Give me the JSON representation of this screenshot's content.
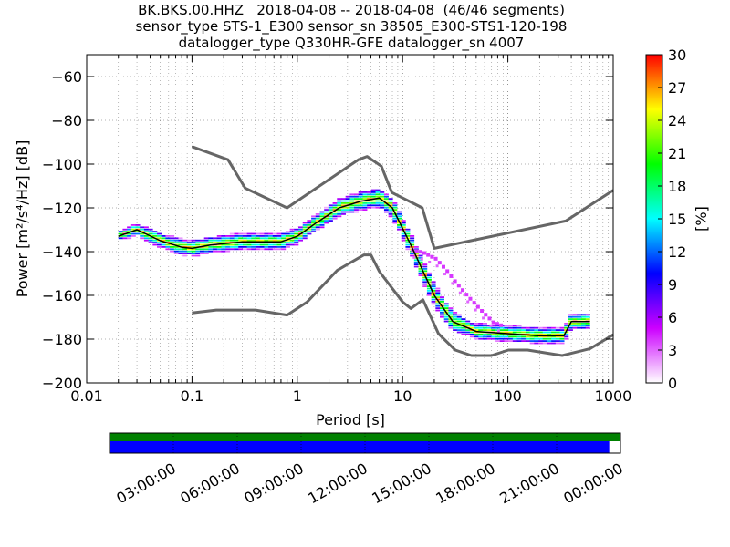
{
  "chart_data": {
    "type": "heatmap",
    "title_lines": [
      "BK.BKS.00.HHZ   2018-04-08 -- 2018-04-08  (46/46 segments)",
      "sensor_type STS-1_E300 sensor_sn 38505_E300-STS1-120-198",
      "datalogger_type Q330HR-GFE datalogger_sn 4007"
    ],
    "xlabel": "Period [s]",
    "ylabel": "Power [m²/s⁴/Hz] [dB]",
    "xscale": "log",
    "xlim": [
      0.01,
      1000
    ],
    "ylim": [
      -200,
      -50
    ],
    "xticks": [
      {
        "v": 0.01,
        "label": "0.01"
      },
      {
        "v": 0.1,
        "label": "0.1"
      },
      {
        "v": 1,
        "label": "1"
      },
      {
        "v": 10,
        "label": "10"
      },
      {
        "v": 100,
        "label": "100"
      },
      {
        "v": 1000,
        "label": "1000"
      }
    ],
    "yticks": [
      {
        "v": -60,
        "label": "−60"
      },
      {
        "v": -80,
        "label": "−80"
      },
      {
        "v": -100,
        "label": "−100"
      },
      {
        "v": -120,
        "label": "−120"
      },
      {
        "v": -140,
        "label": "−140"
      },
      {
        "v": -160,
        "label": "−160"
      },
      {
        "v": -180,
        "label": "−180"
      },
      {
        "v": -200,
        "label": "−200"
      }
    ],
    "grid": true,
    "colorbar": {
      "label": "[%]",
      "range": [
        0,
        30
      ],
      "ticks": [
        {
          "v": 0,
          "label": "0"
        },
        {
          "v": 3,
          "label": "3"
        },
        {
          "v": 6,
          "label": "6"
        },
        {
          "v": 9,
          "label": "9"
        },
        {
          "v": 12,
          "label": "12"
        },
        {
          "v": 15,
          "label": "15"
        },
        {
          "v": 18,
          "label": "18"
        },
        {
          "v": 21,
          "label": "21"
        },
        {
          "v": 24,
          "label": "24"
        },
        {
          "v": 27,
          "label": "27"
        },
        {
          "v": 30,
          "label": "30"
        }
      ],
      "colors": [
        "#ffffff",
        "#cc00ff",
        "#0000ff",
        "#00ffff",
        "#00ff00",
        "#ffff00",
        "#ff0000"
      ]
    },
    "nhnm": [
      [
        0.1,
        -92
      ],
      [
        0.22,
        -98
      ],
      [
        0.32,
        -111
      ],
      [
        0.8,
        -120
      ],
      [
        3.8,
        -98
      ],
      [
        4.6,
        -96.5
      ],
      [
        6.3,
        -101
      ],
      [
        7.9,
        -113
      ],
      [
        15.4,
        -120
      ],
      [
        20,
        -138.5
      ],
      [
        354,
        -126
      ],
      [
        1000,
        -112
      ]
    ],
    "nlnm": [
      [
        0.1,
        -168
      ],
      [
        0.17,
        -166.7
      ],
      [
        0.4,
        -166.7
      ],
      [
        0.8,
        -169
      ],
      [
        1.24,
        -163
      ],
      [
        2.4,
        -148.5
      ],
      [
        4.3,
        -141.5
      ],
      [
        5,
        -141.5
      ],
      [
        6,
        -149
      ],
      [
        10,
        -163
      ],
      [
        12,
        -166
      ],
      [
        15.6,
        -162
      ],
      [
        21.9,
        -177.5
      ],
      [
        31.6,
        -185
      ],
      [
        45,
        -187.5
      ],
      [
        70,
        -187.5
      ],
      [
        101,
        -185
      ],
      [
        154,
        -185
      ],
      [
        328,
        -187.5
      ],
      [
        600,
        -184.4
      ],
      [
        1000,
        -178
      ]
    ],
    "median": [
      [
        0.02,
        -133
      ],
      [
        0.03,
        -130
      ],
      [
        0.05,
        -135
      ],
      [
        0.08,
        -138
      ],
      [
        0.1,
        -138.5
      ],
      [
        0.15,
        -137
      ],
      [
        0.3,
        -135.5
      ],
      [
        0.7,
        -135.5
      ],
      [
        1,
        -133
      ],
      [
        1.5,
        -127
      ],
      [
        2.5,
        -120
      ],
      [
        4,
        -117
      ],
      [
        6,
        -115.5
      ],
      [
        8,
        -120
      ],
      [
        12,
        -137
      ],
      [
        20,
        -160
      ],
      [
        30,
        -172
      ],
      [
        50,
        -176.5
      ],
      [
        100,
        -177.5
      ],
      [
        200,
        -178.5
      ],
      [
        340,
        -178.5
      ],
      [
        400,
        -172
      ],
      [
        600,
        -172
      ]
    ],
    "band_spread": [
      [
        0.02,
        1.5
      ],
      [
        0.04,
        2.5
      ],
      [
        0.1,
        3
      ],
      [
        0.3,
        3
      ],
      [
        0.7,
        3
      ],
      [
        1.5,
        3
      ],
      [
        3,
        3.5
      ],
      [
        6,
        3.5
      ],
      [
        10,
        4
      ],
      [
        20,
        4.5
      ],
      [
        40,
        3
      ],
      [
        100,
        3
      ],
      [
        300,
        3
      ],
      [
        600,
        3
      ]
    ],
    "high_tail": [
      [
        12,
        -139
      ],
      [
        15,
        -140
      ],
      [
        20,
        -143
      ],
      [
        25,
        -148
      ],
      [
        30,
        -153
      ],
      [
        40,
        -160
      ],
      [
        55,
        -167
      ],
      [
        70,
        -172
      ],
      [
        90,
        -174
      ]
    ],
    "data_availability": {
      "tick_labels": [
        "03:00:00",
        "06:00:00",
        "09:00:00",
        "12:00:00",
        "15:00:00",
        "18:00:00",
        "21:00:00",
        "00:00:00"
      ],
      "data_fraction": 0.978,
      "data_color": "#0000ff",
      "used_color": "#008000"
    }
  }
}
